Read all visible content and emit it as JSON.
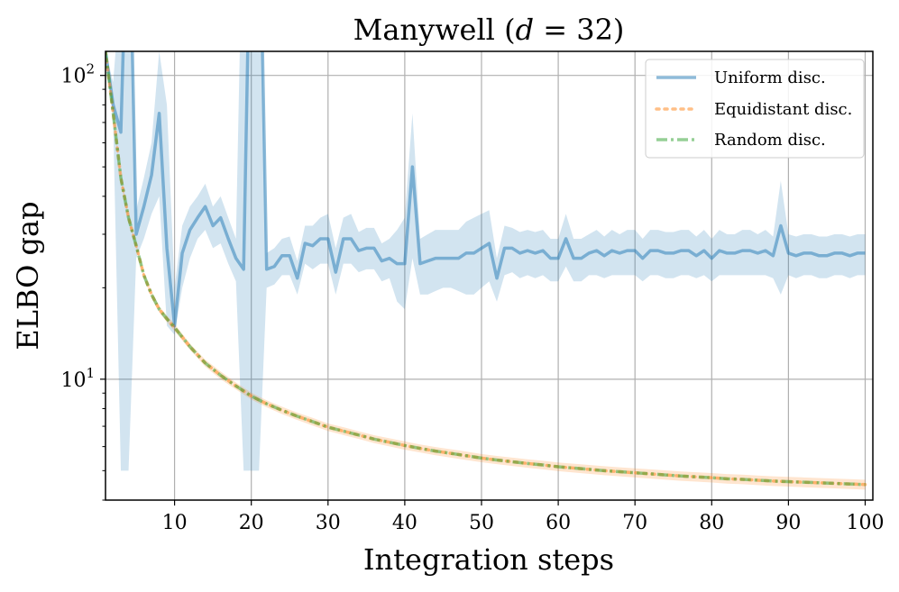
{
  "chart_data": {
    "type": "line",
    "title": "Manywell (d = 32)",
    "title_parts": {
      "main": "Manywell (",
      "var": "d",
      "eq": " = 32)"
    },
    "xlabel": "Integration steps",
    "ylabel": "ELBO gap",
    "xlim": [
      1,
      101
    ],
    "ylim": [
      4,
      120
    ],
    "yscale": "log",
    "grid": true,
    "legend_position": "top-right",
    "x_ticks": [
      10,
      20,
      30,
      40,
      50,
      60,
      70,
      80,
      90,
      100
    ],
    "y_ticks": [
      {
        "value": 10,
        "base": "10",
        "exp": "1"
      },
      {
        "value": 100,
        "base": "10",
        "exp": "2"
      }
    ],
    "series": [
      {
        "name": "Uniform disc.",
        "color": "#1f77b4",
        "style": "solid",
        "x": [
          1,
          2,
          3,
          4,
          5,
          6,
          7,
          8,
          9,
          10,
          11,
          12,
          13,
          14,
          15,
          16,
          17,
          18,
          19,
          20,
          21,
          22,
          23,
          24,
          25,
          26,
          27,
          28,
          29,
          30,
          31,
          32,
          33,
          34,
          35,
          36,
          37,
          38,
          39,
          40,
          41,
          42,
          43,
          44,
          45,
          46,
          47,
          48,
          49,
          50,
          51,
          52,
          53,
          54,
          55,
          56,
          57,
          58,
          59,
          60,
          61,
          62,
          63,
          64,
          65,
          66,
          67,
          68,
          69,
          70,
          71,
          72,
          73,
          74,
          75,
          76,
          77,
          78,
          79,
          80,
          81,
          82,
          83,
          84,
          85,
          86,
          87,
          88,
          89,
          90,
          91,
          92,
          93,
          94,
          95,
          96,
          97,
          98,
          99,
          100
        ],
        "values": [
          120,
          80,
          65,
          500,
          30,
          37,
          47,
          75,
          27,
          15,
          26,
          31,
          34,
          37,
          32,
          34,
          29,
          25,
          23,
          500,
          500,
          23,
          23.5,
          25.5,
          25.5,
          21.5,
          28,
          27.5,
          29,
          29,
          22.5,
          29,
          29,
          26.5,
          27,
          27,
          24.5,
          25,
          24,
          24,
          50,
          24,
          24.5,
          25,
          25,
          25,
          25,
          26,
          26,
          27,
          28,
          21.5,
          27,
          27,
          26,
          26.5,
          26,
          26.5,
          25,
          25,
          29,
          25,
          25,
          26,
          26.5,
          25.5,
          26.5,
          26,
          26.5,
          26.5,
          25,
          26.5,
          26.5,
          26,
          26,
          26.5,
          26.5,
          25.5,
          26.5,
          25,
          26.5,
          26,
          26,
          26.5,
          26.5,
          26,
          26.5,
          25.5,
          32,
          26,
          25.5,
          26,
          26,
          25.5,
          25.5,
          26,
          26,
          25.5,
          26,
          26
        ],
        "band_lower": [
          120,
          70,
          5,
          5,
          25,
          29,
          35,
          40,
          15,
          14,
          20,
          25,
          29,
          31,
          27,
          28,
          24,
          21,
          5,
          5,
          5,
          20,
          20.5,
          22,
          22,
          19,
          24,
          23,
          24,
          24,
          19,
          24,
          24,
          22.5,
          23,
          23,
          21,
          21.5,
          18,
          17,
          25,
          19,
          19,
          19.5,
          20,
          20,
          19.5,
          19,
          19,
          20,
          21,
          18,
          22,
          22.5,
          21.5,
          22,
          21.5,
          22,
          21,
          21,
          23.5,
          21,
          21,
          22,
          22,
          21.5,
          22,
          22,
          22,
          22,
          21,
          22,
          22,
          21.5,
          21.5,
          22,
          22,
          21.5,
          22,
          21,
          22,
          22,
          22,
          22,
          22,
          22,
          22,
          21.5,
          19,
          22,
          21.5,
          22,
          22,
          21.5,
          21.5,
          22,
          22,
          21.5,
          22,
          22
        ],
        "band_upper": [
          120,
          95,
          200,
          500,
          36,
          46,
          60,
          120,
          80,
          20,
          32,
          37,
          40,
          44,
          37,
          40,
          34,
          29,
          500,
          500,
          500,
          26,
          27,
          29,
          29.5,
          24.5,
          32,
          32,
          34,
          35,
          27,
          34,
          35,
          30.5,
          31.5,
          31.5,
          28,
          29,
          31,
          34,
          75,
          29,
          30,
          31,
          31,
          31,
          31,
          33,
          34,
          35,
          36,
          25,
          32,
          31.5,
          30.5,
          31,
          30.5,
          31,
          29,
          29,
          35,
          29,
          29,
          30,
          31,
          29.5,
          31,
          30,
          31,
          31,
          29,
          31,
          31,
          30.5,
          30.5,
          31,
          31,
          29.5,
          31,
          29,
          31,
          30,
          30,
          31,
          31,
          30,
          31,
          29.5,
          45,
          30,
          29.5,
          30,
          30,
          29.5,
          29.5,
          30,
          30,
          29.5,
          30,
          30
        ]
      },
      {
        "name": "Equidistant disc.",
        "color": "#ff7f0e",
        "style": "dotted",
        "x": [
          1,
          2,
          3,
          4,
          5,
          6,
          7,
          8,
          9,
          10,
          12,
          14,
          16,
          18,
          20,
          22,
          24,
          26,
          28,
          30,
          32,
          34,
          36,
          38,
          40,
          42,
          44,
          46,
          48,
          50,
          52,
          54,
          56,
          58,
          60,
          62,
          64,
          66,
          68,
          70,
          72,
          74,
          76,
          78,
          80,
          82,
          84,
          86,
          88,
          90,
          92,
          94,
          96,
          98,
          100
        ],
        "values": [
          120,
          75,
          46,
          34,
          27.5,
          22,
          19,
          17,
          15.8,
          14.8,
          12.8,
          11.3,
          10.3,
          9.5,
          8.8,
          8.3,
          7.9,
          7.55,
          7.25,
          6.95,
          6.75,
          6.55,
          6.35,
          6.2,
          6.05,
          5.92,
          5.8,
          5.7,
          5.6,
          5.5,
          5.42,
          5.35,
          5.28,
          5.22,
          5.15,
          5.1,
          5.05,
          5.0,
          4.96,
          4.92,
          4.88,
          4.84,
          4.8,
          4.77,
          4.74,
          4.7,
          4.68,
          4.65,
          4.62,
          4.6,
          4.58,
          4.56,
          4.54,
          4.52,
          4.5
        ],
        "band_lower": [
          120,
          73,
          44.5,
          33,
          26.8,
          21.5,
          18.5,
          16.6,
          15.4,
          14.4,
          12.5,
          11.0,
          10.0,
          9.25,
          8.57,
          8.08,
          7.68,
          7.34,
          7.04,
          6.75,
          6.55,
          6.36,
          6.16,
          6.01,
          5.86,
          5.74,
          5.62,
          5.52,
          5.42,
          5.33,
          5.25,
          5.18,
          5.11,
          5.05,
          4.98,
          4.93,
          4.88,
          4.83,
          4.79,
          4.75,
          4.71,
          4.67,
          4.63,
          4.6,
          4.57,
          4.53,
          4.51,
          4.48,
          4.45,
          4.43,
          4.41,
          4.39,
          4.37,
          4.35,
          4.33
        ],
        "band_upper": [
          120,
          77,
          47.5,
          35,
          28.2,
          22.5,
          19.5,
          17.4,
          16.2,
          15.2,
          13.1,
          11.6,
          10.6,
          9.75,
          9.03,
          8.52,
          8.12,
          7.76,
          7.46,
          7.15,
          6.95,
          6.74,
          6.54,
          6.39,
          6.24,
          6.1,
          5.98,
          5.88,
          5.78,
          5.67,
          5.59,
          5.52,
          5.45,
          5.39,
          5.32,
          5.27,
          5.22,
          5.17,
          5.13,
          5.09,
          5.05,
          5.01,
          4.97,
          4.94,
          4.91,
          4.87,
          4.85,
          4.82,
          4.79,
          4.77,
          4.75,
          4.73,
          4.71,
          4.69,
          4.67
        ]
      },
      {
        "name": "Random disc.",
        "color": "#2ca02c",
        "style": "dashdot",
        "x": [
          1,
          2,
          3,
          4,
          5,
          6,
          7,
          8,
          9,
          10,
          12,
          14,
          16,
          18,
          20,
          22,
          24,
          26,
          28,
          30,
          32,
          34,
          36,
          38,
          40,
          42,
          44,
          46,
          48,
          50,
          52,
          54,
          56,
          58,
          60,
          62,
          64,
          66,
          68,
          70,
          72,
          74,
          76,
          78,
          80,
          82,
          84,
          86,
          88,
          90,
          92,
          94,
          96,
          98,
          100
        ],
        "values": [
          120,
          75,
          46,
          34,
          27.5,
          22,
          19,
          17,
          15.8,
          14.8,
          12.8,
          11.3,
          10.3,
          9.5,
          8.8,
          8.3,
          7.9,
          7.55,
          7.25,
          6.95,
          6.75,
          6.55,
          6.35,
          6.2,
          6.05,
          5.92,
          5.8,
          5.7,
          5.6,
          5.5,
          5.42,
          5.35,
          5.28,
          5.22,
          5.15,
          5.1,
          5.05,
          5.0,
          4.96,
          4.92,
          4.88,
          4.84,
          4.8,
          4.77,
          4.74,
          4.7,
          4.68,
          4.65,
          4.62,
          4.6,
          4.58,
          4.56,
          4.54,
          4.52,
          4.5
        ]
      }
    ]
  }
}
